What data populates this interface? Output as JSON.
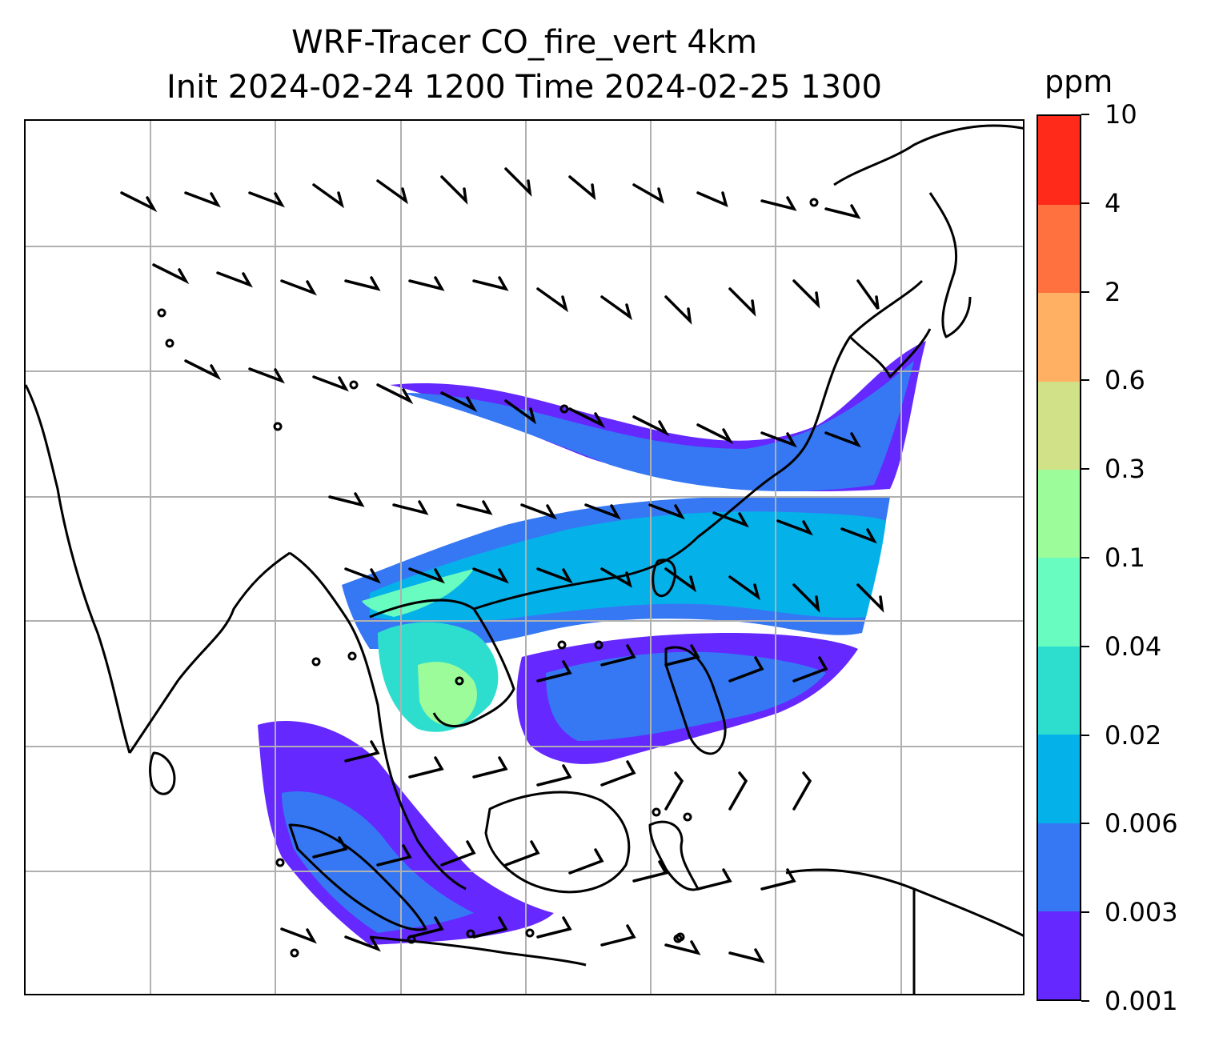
{
  "title": {
    "line1": "WRF-Tracer CO_fire_vert 4km",
    "line2": "Init 2024-02-24 1200 Time 2024-02-25 1300"
  },
  "colorbar": {
    "unit": "ppm",
    "levels": [
      "0.001",
      "0.003",
      "0.006",
      "0.02",
      "0.04",
      "0.1",
      "0.3",
      "0.6",
      "2",
      "4",
      "10"
    ],
    "colors": [
      "#6528ff",
      "#3678f4",
      "#05b1e9",
      "#2ddecf",
      "#68fcc0",
      "#9dfc9a",
      "#d1e188",
      "#ffb062",
      "#ff7240",
      "#ff2a1a"
    ]
  },
  "map": {
    "field": "CO_fire_vert",
    "gridlines": true,
    "coastline_color": "#000000",
    "grid_color": "#b0b0b0"
  }
}
